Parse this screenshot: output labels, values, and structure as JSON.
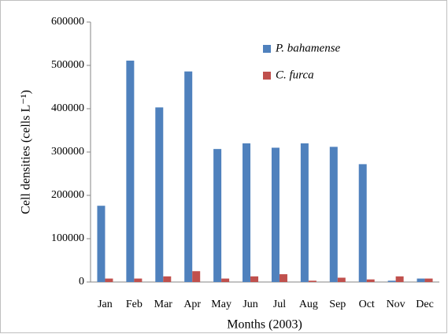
{
  "chart_data": {
    "type": "bar",
    "x_label": "Months (2003)",
    "y_label": "Cell densities (cells L⁻¹)",
    "categories": [
      "Jan",
      "Feb",
      "Mar",
      "Apr",
      "May",
      "Jun",
      "Jul",
      "Aug",
      "Sep",
      "Oct",
      "Nov",
      "Dec"
    ],
    "series": [
      {
        "name": "P. bahamense",
        "color": "#4f81bd",
        "values": [
          176000,
          511000,
          403000,
          486000,
          307000,
          320000,
          310000,
          320000,
          312000,
          272000,
          3000,
          8000
        ]
      },
      {
        "name": "C. furca",
        "color": "#c0504d",
        "values": [
          8000,
          8000,
          13000,
          25000,
          8000,
          13000,
          18000,
          3000,
          10000,
          6000,
          13000,
          8000
        ]
      }
    ],
    "ylim": [
      0,
      600000
    ],
    "yticks": [
      0,
      100000,
      200000,
      300000,
      400000,
      500000,
      600000
    ],
    "legend": "top-right"
  }
}
